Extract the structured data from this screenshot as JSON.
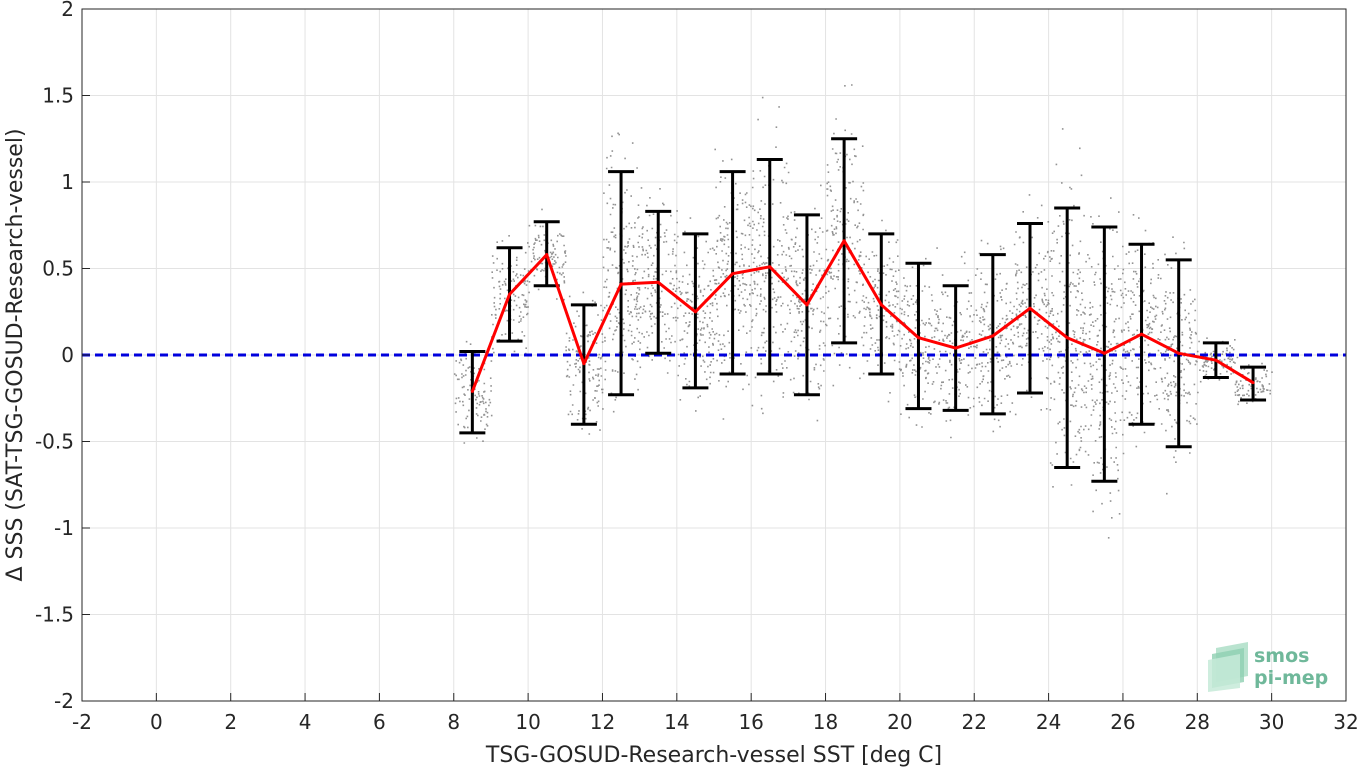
{
  "chart_data": {
    "type": "scatter",
    "xlabel": "TSG-GOSUD-Research-vessel SST [deg C]",
    "ylabel": "Δ SSS (SAT-TSG-GOSUD-Research-vessel)",
    "xlim": [
      -2,
      32
    ],
    "ylim": [
      -2,
      2
    ],
    "xticks": [
      -2,
      0,
      2,
      4,
      6,
      8,
      10,
      12,
      14,
      16,
      18,
      20,
      22,
      24,
      26,
      28,
      30,
      32
    ],
    "yticks": [
      -2,
      -1.5,
      -1,
      -0.5,
      0,
      0.5,
      1,
      1.5,
      2
    ],
    "grid": true,
    "reference_line": {
      "y": 0,
      "style": "dashed",
      "color": "#0000dd"
    },
    "binned_mean": {
      "color": "#ff0000",
      "x": [
        8.5,
        9.5,
        10.5,
        11.5,
        12.5,
        13.5,
        14.5,
        15.5,
        16.5,
        17.5,
        18.5,
        19.5,
        20.5,
        21.5,
        22.5,
        23.5,
        24.5,
        25.5,
        26.5,
        27.5,
        28.5,
        29.5
      ],
      "y": [
        -0.21,
        0.35,
        0.58,
        -0.05,
        0.41,
        0.42,
        0.25,
        0.47,
        0.51,
        0.29,
        0.66,
        0.29,
        0.1,
        0.04,
        0.11,
        0.27,
        0.1,
        0.01,
        0.12,
        0.01,
        -0.03,
        -0.16
      ]
    },
    "error_bars": {
      "color": "#000000",
      "lower": [
        -0.45,
        0.08,
        0.4,
        -0.4,
        -0.23,
        0.01,
        -0.19,
        -0.11,
        -0.11,
        -0.23,
        0.07,
        -0.11,
        -0.31,
        -0.32,
        -0.34,
        -0.22,
        -0.65,
        -0.73,
        -0.4,
        -0.53,
        -0.13,
        -0.26
      ],
      "upper": [
        0.02,
        0.62,
        0.77,
        0.29,
        1.06,
        0.83,
        0.7,
        1.06,
        1.13,
        0.81,
        1.25,
        0.7,
        0.53,
        0.4,
        0.58,
        0.76,
        0.85,
        0.74,
        0.64,
        0.55,
        0.07,
        -0.07
      ]
    },
    "scatter_color": "#808080"
  },
  "logo": {
    "line1": "smos",
    "line2": "pi-mep"
  }
}
